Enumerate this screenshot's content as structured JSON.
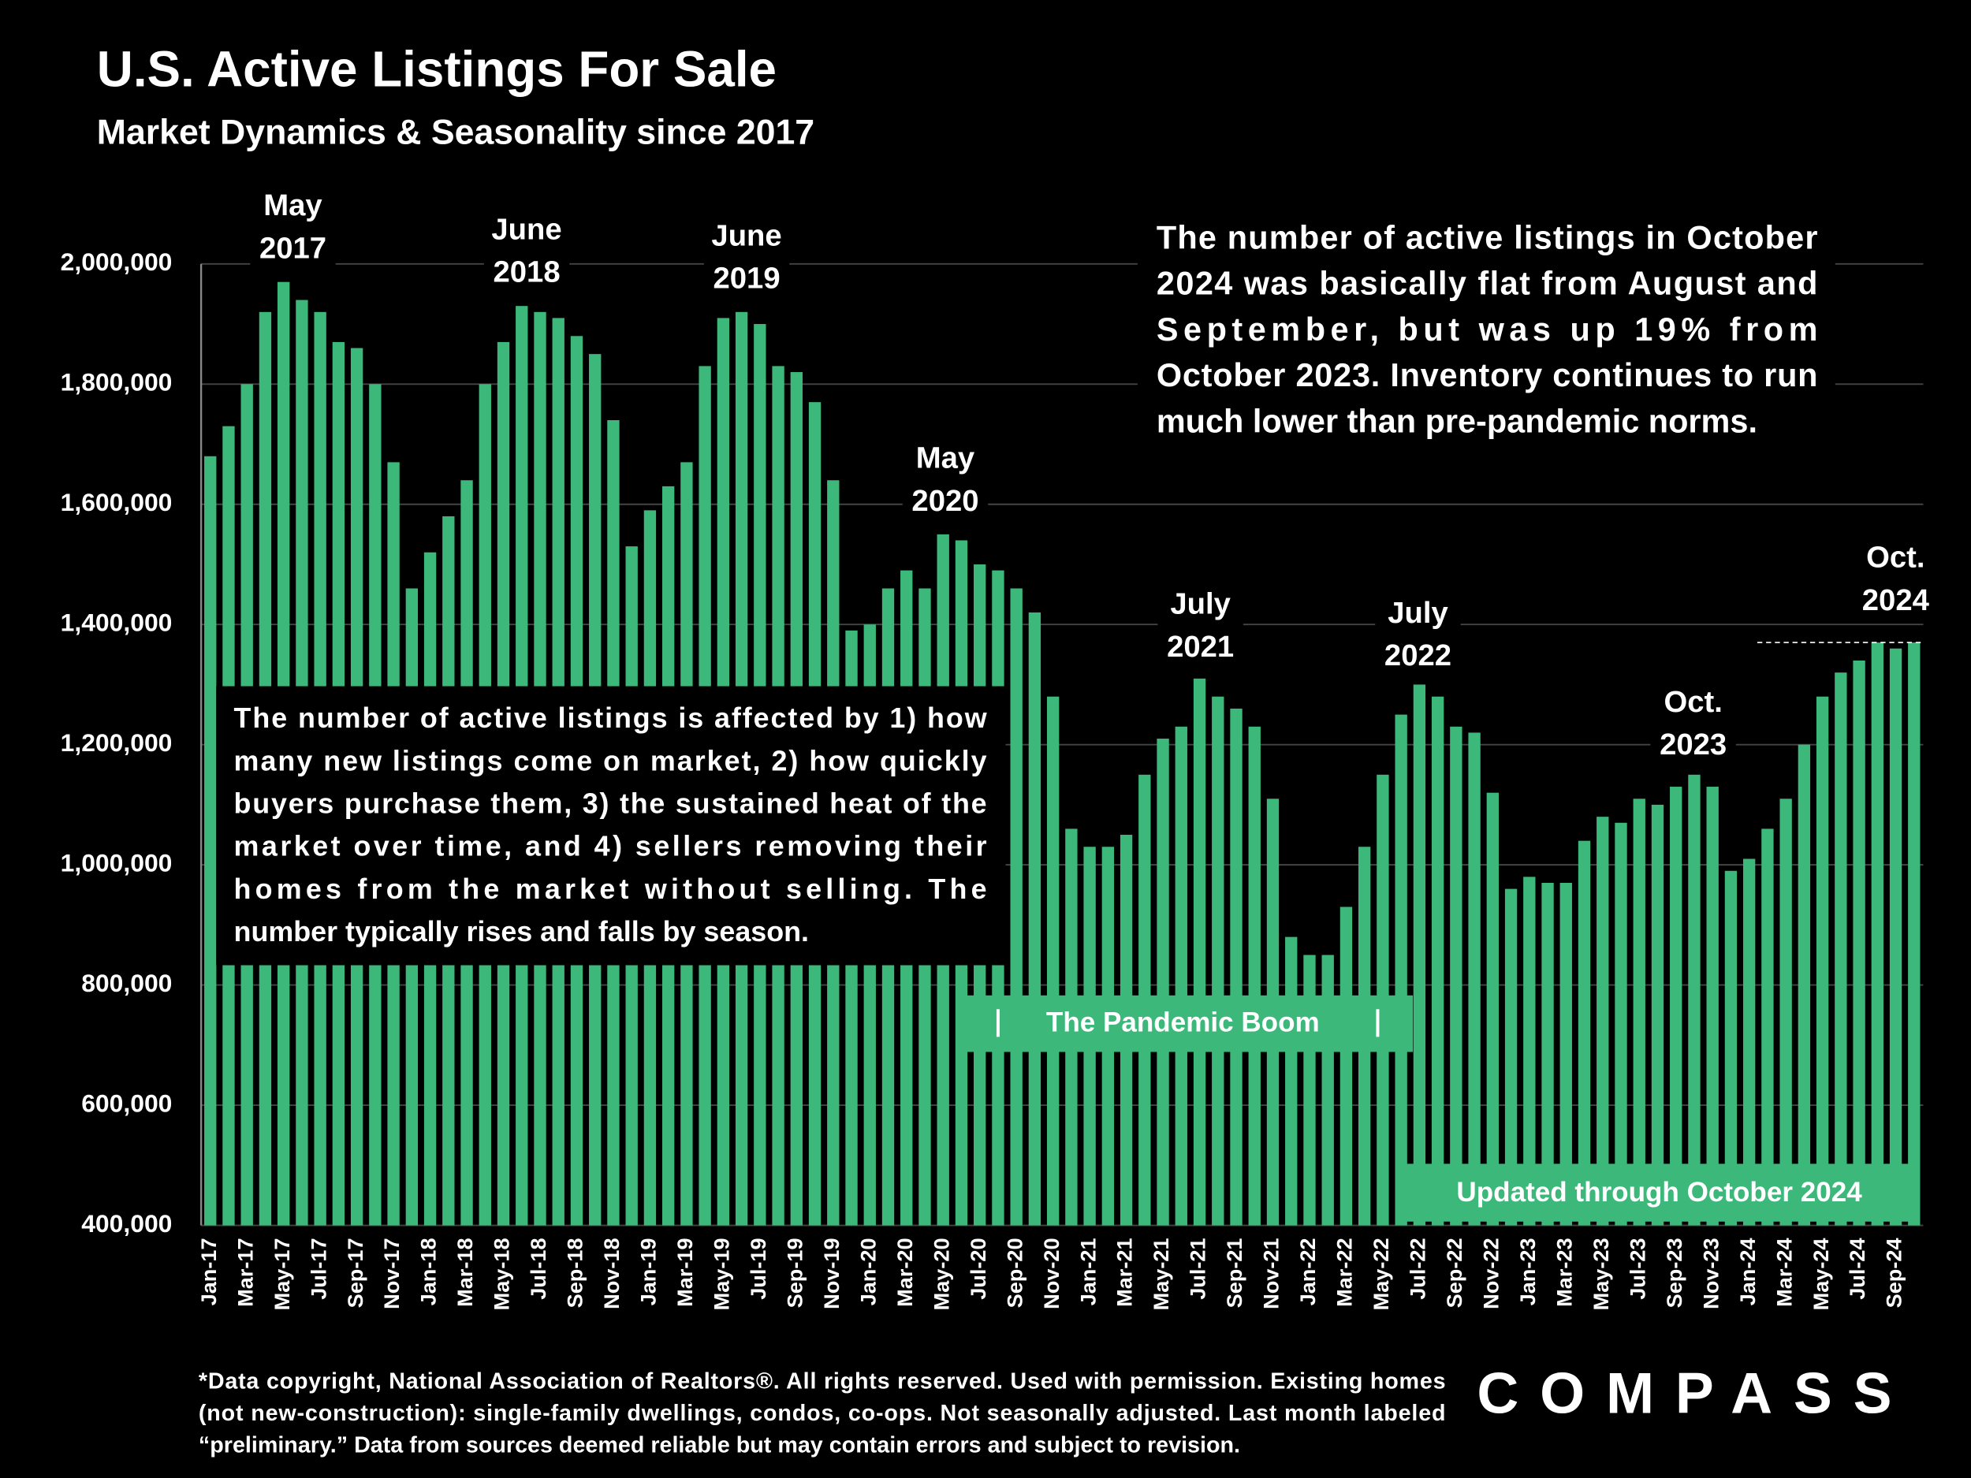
{
  "chart_data": {
    "type": "bar",
    "title": "U.S. Active Listings For Sale",
    "subtitle": "Market Dynamics & Seasonality since 2017",
    "categories": [
      "Jan-17",
      null,
      "Mar-17",
      null,
      "May-17",
      null,
      "Jul-17",
      null,
      "Sep-17",
      null,
      "Nov-17",
      null,
      "Jan-18",
      null,
      "Mar-18",
      null,
      "May-18",
      null,
      "Jul-18",
      null,
      "Sep-18",
      null,
      "Nov-18",
      null,
      "Jan-19",
      null,
      "Mar-19",
      null,
      "May-19",
      null,
      "Jul-19",
      null,
      "Sep-19",
      null,
      "Nov-19",
      null,
      "Jan-20",
      null,
      "Mar-20",
      null,
      "May-20",
      null,
      "Jul-20",
      null,
      "Sep-20",
      null,
      "Nov-20",
      null,
      "Jan-21",
      null,
      "Mar-21",
      null,
      "May-21",
      null,
      "Jul-21",
      null,
      "Sep-21",
      null,
      "Nov-21",
      null,
      "Jan-22",
      null,
      "Mar-22",
      null,
      "May-22",
      null,
      "Jul-22",
      null,
      "Sep-22",
      null,
      "Nov-22",
      null,
      "Jan-23",
      null,
      "Mar-23",
      null,
      "May-23",
      null,
      "Jul-23",
      null,
      "Sep-23",
      null,
      "Nov-23",
      null,
      "Jan-24",
      null,
      "Mar-24",
      null,
      "May-24",
      null,
      "Jul-24",
      null,
      "Sep-24",
      null
    ],
    "values": [
      1680000,
      1730000,
      1800000,
      1920000,
      1970000,
      1940000,
      1920000,
      1870000,
      1860000,
      1800000,
      1670000,
      1460000,
      1520000,
      1580000,
      1640000,
      1800000,
      1870000,
      1930000,
      1920000,
      1910000,
      1880000,
      1850000,
      1740000,
      1530000,
      1590000,
      1630000,
      1670000,
      1830000,
      1910000,
      1920000,
      1900000,
      1830000,
      1820000,
      1770000,
      1640000,
      1390000,
      1400000,
      1460000,
      1490000,
      1460000,
      1550000,
      1540000,
      1500000,
      1490000,
      1460000,
      1420000,
      1280000,
      1060000,
      1030000,
      1030000,
      1050000,
      1150000,
      1210000,
      1230000,
      1310000,
      1280000,
      1260000,
      1230000,
      1110000,
      880000,
      850000,
      850000,
      930000,
      1030000,
      1150000,
      1250000,
      1300000,
      1280000,
      1230000,
      1220000,
      1120000,
      960000,
      980000,
      970000,
      970000,
      1040000,
      1080000,
      1070000,
      1110000,
      1100000,
      1130000,
      1150000,
      1130000,
      990000,
      1010000,
      1060000,
      1110000,
      1200000,
      1280000,
      1320000,
      1340000,
      1370000,
      1360000,
      1370000
    ],
    "color": "#3cb97a",
    "ylim": [
      400000,
      2000000
    ],
    "yticks": [
      {
        "value": 400000,
        "label": "400,000"
      },
      {
        "value": 600000,
        "label": "600,000"
      },
      {
        "value": 800000,
        "label": "800,000"
      },
      {
        "value": 1000000,
        "label": "1,000,000"
      },
      {
        "value": 1200000,
        "label": "1,200,000"
      },
      {
        "value": 1400000,
        "label": "1,400,000"
      },
      {
        "value": 1600000,
        "label": "1,600,000"
      },
      {
        "value": 1800000,
        "label": "1,800,000"
      },
      {
        "value": 2000000,
        "label": "2,000,000"
      }
    ],
    "grid": true,
    "peak_labels": [
      [
        "May",
        "2017"
      ],
      [
        "June",
        "2018"
      ],
      [
        "June",
        "2019"
      ],
      [
        "May",
        "2020"
      ],
      [
        "July",
        "2021"
      ],
      [
        "July",
        "2022"
      ],
      [
        "Oct.",
        "2023"
      ],
      [
        "Oct.",
        "2024"
      ]
    ],
    "note": [
      "The number of active listings in October",
      "2024 was basically flat from August and",
      "September, but was up 19% from",
      "October 2023. Inventory continues to run",
      "much lower than pre-pandemic norms."
    ],
    "explainer": [
      "The number of active listings is affected by 1) how",
      "many new listings come on market, 2) how quickly",
      "buyers purchase them, 3) the sustained heat of the",
      "market over time, and 4) sellers removing their",
      "homes from the market without selling. The",
      "number typically rises and falls by season."
    ],
    "period_label": "The Pandemic Boom",
    "updated_label": "Updated through October 2024",
    "footnote": [
      "*Data copyright, National Association of Realtors®. All rights reserved. Used with permission. Existing homes",
      "(not new-construction): single-family dwellings, condos, co-ops. Not seasonally adjusted. Last month labeled",
      "“preliminary.” Data from sources deemed reliable but may contain errors and subject to revision."
    ],
    "logo": "COMPASS"
  }
}
